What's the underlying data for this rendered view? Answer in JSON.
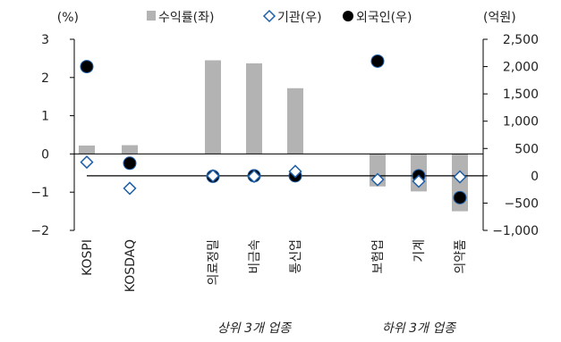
{
  "chart_data": {
    "type": "bar",
    "left_unit": "(%)",
    "right_unit": "(억원)",
    "categories": [
      "KOSPI",
      "KOSDAQ",
      "",
      "의료정밀",
      "비금속",
      "통신업",
      "",
      "보험업",
      "기계",
      "의약품"
    ],
    "series": [
      {
        "name": "수익률(좌)",
        "kind": "bar",
        "axis": "left",
        "color": "#b3b3b3",
        "values": [
          0.22,
          0.23,
          null,
          2.45,
          2.37,
          1.72,
          null,
          -0.85,
          -0.98,
          -1.5
        ]
      },
      {
        "name": "기관(우)",
        "kind": "marker",
        "marker": "diamond",
        "axis": "right",
        "color": "#1f5fa8",
        "values": [
          250,
          -230,
          null,
          0,
          -10,
          80,
          null,
          -70,
          -100,
          -20
        ]
      },
      {
        "name": "외국인(우)",
        "kind": "marker",
        "marker": "circle",
        "axis": "right",
        "color": "#000000",
        "values": [
          2000,
          230,
          null,
          -10,
          0,
          0,
          null,
          2100,
          0,
          -400
        ]
      }
    ],
    "y_left": {
      "min": -2,
      "max": 3,
      "ticks": [
        3,
        2,
        1,
        0,
        -1,
        -2
      ],
      "tick_labels": [
        "3",
        "2",
        "1",
        "0",
        "−1",
        "−2"
      ]
    },
    "y_right": {
      "min": -1000,
      "max": 2500,
      "ticks": [
        2500,
        2000,
        1500,
        1000,
        500,
        0,
        -500,
        -1000
      ],
      "tick_labels": [
        "2,500",
        "2,000",
        "1,500",
        "1,000",
        "500",
        "0",
        "−500",
        "−1,000"
      ]
    },
    "groups": [
      {
        "label": "상위 3개 업종",
        "from": 3,
        "to": 5
      },
      {
        "label": "하위 3개 업종",
        "from": 7,
        "to": 9
      }
    ],
    "legend": {
      "position": "top"
    }
  }
}
